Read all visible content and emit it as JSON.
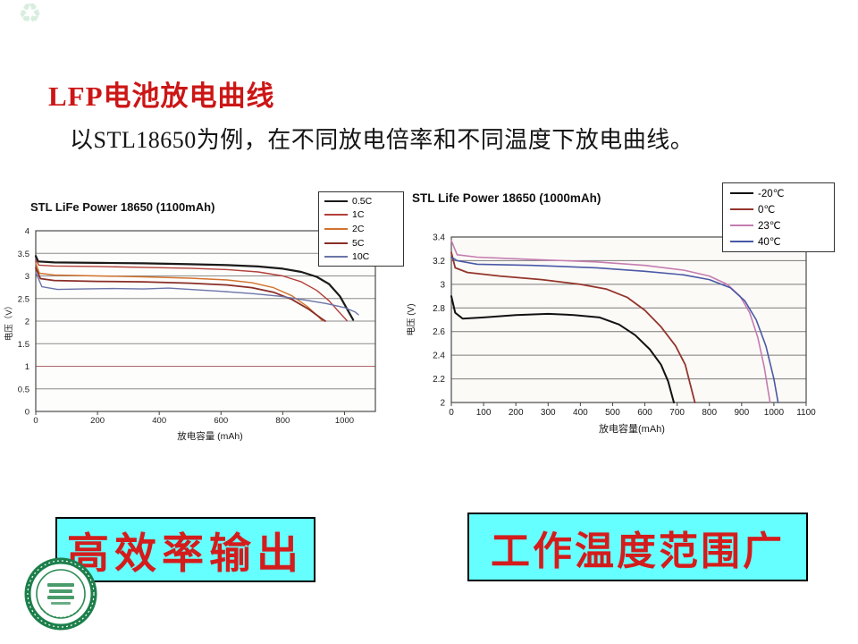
{
  "slide": {
    "title": "LFP电池放电曲线",
    "subtitle": "以STL18650为例，在不同放电倍率和不同温度下放电曲线。",
    "watermark_icon": "♻",
    "highlight_boxes": [
      {
        "label": "高效率输出"
      },
      {
        "label": "工作温度范围广"
      }
    ],
    "colors": {
      "title_red": "#cc1616",
      "callout_background": "#66ffff",
      "callout_text": "#d41c1c",
      "callout_border": "#000000",
      "seal_green": "#1d7f4b"
    }
  },
  "chart_data": [
    {
      "type": "line",
      "title": "STL LiFe Power 18650 (1100mAh)",
      "xlabel": "放电容量 (mAh)",
      "ylabel": "电压（V）",
      "xlim": [
        0,
        1100
      ],
      "ylim": [
        0,
        4
      ],
      "xticks": [
        0,
        200,
        400,
        600,
        800,
        1000
      ],
      "yticks": [
        0,
        0.5,
        1,
        1.5,
        2,
        2.5,
        3,
        3.5,
        4
      ],
      "grid": "horizontal",
      "grid_color": "#8c8c8c",
      "plot_bg": "#fdfdfb",
      "special_gridline": {
        "y": 1,
        "color": "#b06868"
      },
      "legend_position": "top-right",
      "series": [
        {
          "name": "0.5C",
          "color": "#1a1a1a",
          "width": 2.2,
          "points": [
            [
              0,
              3.44
            ],
            [
              8,
              3.32
            ],
            [
              60,
              3.3
            ],
            [
              200,
              3.29
            ],
            [
              350,
              3.28
            ],
            [
              500,
              3.26
            ],
            [
              620,
              3.24
            ],
            [
              720,
              3.21
            ],
            [
              800,
              3.16
            ],
            [
              860,
              3.09
            ],
            [
              910,
              2.98
            ],
            [
              950,
              2.82
            ],
            [
              985,
              2.55
            ],
            [
              1010,
              2.25
            ],
            [
              1028,
              2.03
            ]
          ]
        },
        {
          "name": "1C",
          "color": "#b3403a",
          "width": 1.4,
          "points": [
            [
              0,
              3.36
            ],
            [
              10,
              3.24
            ],
            [
              60,
              3.22
            ],
            [
              200,
              3.21
            ],
            [
              350,
              3.19
            ],
            [
              500,
              3.17
            ],
            [
              620,
              3.14
            ],
            [
              720,
              3.09
            ],
            [
              800,
              3.0
            ],
            [
              860,
              2.87
            ],
            [
              910,
              2.68
            ],
            [
              950,
              2.45
            ],
            [
              985,
              2.18
            ],
            [
              1008,
              2.01
            ]
          ]
        },
        {
          "name": "2C",
          "color": "#d2722e",
          "width": 1.4,
          "points": [
            [
              0,
              3.28
            ],
            [
              12,
              3.06
            ],
            [
              60,
              3.02
            ],
            [
              200,
              3.0
            ],
            [
              350,
              2.98
            ],
            [
              500,
              2.95
            ],
            [
              620,
              2.91
            ],
            [
              700,
              2.85
            ],
            [
              770,
              2.74
            ],
            [
              830,
              2.56
            ],
            [
              880,
              2.32
            ],
            [
              915,
              2.1
            ],
            [
              928,
              2.01
            ]
          ]
        },
        {
          "name": "5C",
          "color": "#8a2e28",
          "width": 1.8,
          "points": [
            [
              0,
              3.18
            ],
            [
              15,
              2.94
            ],
            [
              60,
              2.9
            ],
            [
              200,
              2.88
            ],
            [
              350,
              2.87
            ],
            [
              500,
              2.84
            ],
            [
              620,
              2.8
            ],
            [
              700,
              2.74
            ],
            [
              770,
              2.64
            ],
            [
              830,
              2.48
            ],
            [
              885,
              2.26
            ],
            [
              925,
              2.06
            ],
            [
              938,
              2.0
            ]
          ]
        },
        {
          "name": "10C",
          "color": "#6b74a8",
          "width": 1.4,
          "points": [
            [
              0,
              3.08
            ],
            [
              20,
              2.76
            ],
            [
              70,
              2.7
            ],
            [
              150,
              2.71
            ],
            [
              250,
              2.72
            ],
            [
              350,
              2.71
            ],
            [
              430,
              2.73
            ],
            [
              500,
              2.7
            ],
            [
              600,
              2.66
            ],
            [
              700,
              2.61
            ],
            [
              790,
              2.55
            ],
            [
              870,
              2.47
            ],
            [
              940,
              2.39
            ],
            [
              1000,
              2.3
            ],
            [
              1035,
              2.2
            ],
            [
              1045,
              2.14
            ]
          ]
        }
      ]
    },
    {
      "type": "line",
      "title": "STL Life Power 18650 (1000mAh)",
      "xlabel": "放电容量(mAh)",
      "ylabel": "电压 (V)",
      "xlim": [
        0,
        1100
      ],
      "ylim": [
        2,
        3.4
      ],
      "xticks": [
        0,
        100,
        200,
        300,
        400,
        500,
        600,
        700,
        800,
        900,
        1000,
        1100
      ],
      "yticks": [
        2,
        2.2,
        2.4,
        2.6,
        2.8,
        3,
        3.2,
        3.4
      ],
      "grid": "horizontal",
      "grid_color": "#7a7a7a",
      "plot_bg": "#fcfaf7",
      "special_gridline": null,
      "legend_position": "top-right",
      "series": [
        {
          "name": "-20℃",
          "color": "#111111",
          "width": 2.0,
          "points": [
            [
              0,
              2.9
            ],
            [
              12,
              2.76
            ],
            [
              35,
              2.71
            ],
            [
              100,
              2.72
            ],
            [
              200,
              2.74
            ],
            [
              300,
              2.75
            ],
            [
              380,
              2.74
            ],
            [
              460,
              2.72
            ],
            [
              520,
              2.66
            ],
            [
              570,
              2.57
            ],
            [
              615,
              2.45
            ],
            [
              650,
              2.32
            ],
            [
              672,
              2.18
            ],
            [
              690,
              2.0
            ]
          ]
        },
        {
          "name": "0℃",
          "color": "#93352c",
          "width": 1.8,
          "points": [
            [
              0,
              3.27
            ],
            [
              12,
              3.14
            ],
            [
              50,
              3.1
            ],
            [
              150,
              3.07
            ],
            [
              280,
              3.04
            ],
            [
              400,
              3.0
            ],
            [
              480,
              2.96
            ],
            [
              545,
              2.89
            ],
            [
              600,
              2.78
            ],
            [
              650,
              2.64
            ],
            [
              695,
              2.48
            ],
            [
              725,
              2.32
            ],
            [
              755,
              2.0
            ]
          ]
        },
        {
          "name": "23℃",
          "color": "#c47cb0",
          "width": 1.6,
          "points": [
            [
              0,
              3.37
            ],
            [
              18,
              3.25
            ],
            [
              80,
              3.23
            ],
            [
              250,
              3.21
            ],
            [
              450,
              3.19
            ],
            [
              600,
              3.16
            ],
            [
              720,
              3.12
            ],
            [
              800,
              3.07
            ],
            [
              855,
              3.0
            ],
            [
              895,
              2.9
            ],
            [
              925,
              2.76
            ],
            [
              950,
              2.55
            ],
            [
              970,
              2.3
            ],
            [
              988,
              2.0
            ]
          ]
        },
        {
          "name": "40℃",
          "color": "#4a58a6",
          "width": 1.6,
          "points": [
            [
              0,
              3.23
            ],
            [
              18,
              3.2
            ],
            [
              80,
              3.17
            ],
            [
              250,
              3.16
            ],
            [
              450,
              3.14
            ],
            [
              600,
              3.11
            ],
            [
              720,
              3.08
            ],
            [
              800,
              3.04
            ],
            [
              865,
              2.97
            ],
            [
              910,
              2.86
            ],
            [
              945,
              2.7
            ],
            [
              975,
              2.48
            ],
            [
              1000,
              2.2
            ],
            [
              1013,
              2.0
            ]
          ]
        }
      ]
    }
  ]
}
